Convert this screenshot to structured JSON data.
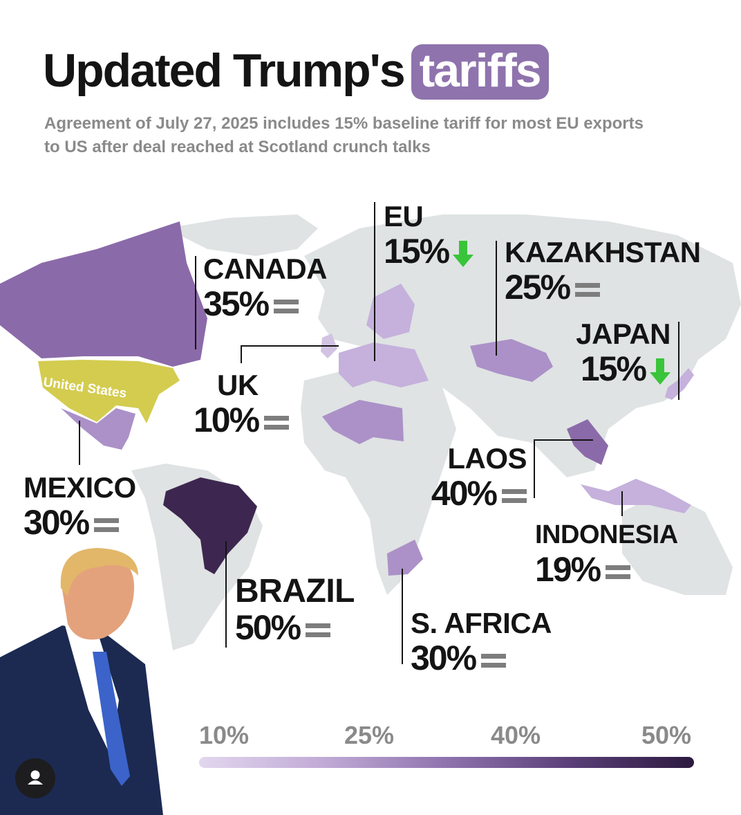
{
  "header": {
    "title": "Updated Trump's",
    "title_highlight": "tariffs",
    "subtitle": "Agreement of July 27, 2025 includes 15% baseline tariff for most EU exports to US after deal reached at Scotland crunch talks"
  },
  "map": {
    "us_label": "United States",
    "colors": {
      "land": "#dfe3e3",
      "us": "#d4cc4f",
      "tier_10": "#d3c3e3",
      "tier_15": "#c5b1dc",
      "tier_25": "#ab91c8",
      "tier_35": "#8b6aa9",
      "tier_50": "#3d2750",
      "up_arrow_green": "#39c43a",
      "equal_gray": "#7d7d7d"
    },
    "countries": [
      {
        "name": "CANADA",
        "tariff": "35%",
        "trend": "equal"
      },
      {
        "name": "EU",
        "tariff": "15%",
        "trend": "down"
      },
      {
        "name": "KAZAKHSTAN",
        "tariff": "25%",
        "trend": "equal"
      },
      {
        "name": "JAPAN",
        "tariff": "15%",
        "trend": "down"
      },
      {
        "name": "UK",
        "tariff": "10%",
        "trend": "equal"
      },
      {
        "name": "MEXICO",
        "tariff": "30%",
        "trend": "equal"
      },
      {
        "name": "LAOS",
        "tariff": "40%",
        "trend": "equal"
      },
      {
        "name": "INDONESIA",
        "tariff": "19%",
        "trend": "equal"
      },
      {
        "name": "BRAZIL",
        "tariff": "50%",
        "trend": "equal"
      },
      {
        "name": "S. AFRICA",
        "tariff": "30%",
        "trend": "equal"
      }
    ]
  },
  "legend": {
    "ticks": [
      "10%",
      "25%",
      "40%",
      "50%"
    ],
    "gradient": [
      "#e2d7ee",
      "#c1abd6",
      "#8f73ad",
      "#5a3f78",
      "#2c1a3f"
    ]
  },
  "icons": {
    "trend_down": "arrow-down-icon",
    "trend_equal": "equal-icon",
    "account": "user-icon"
  }
}
